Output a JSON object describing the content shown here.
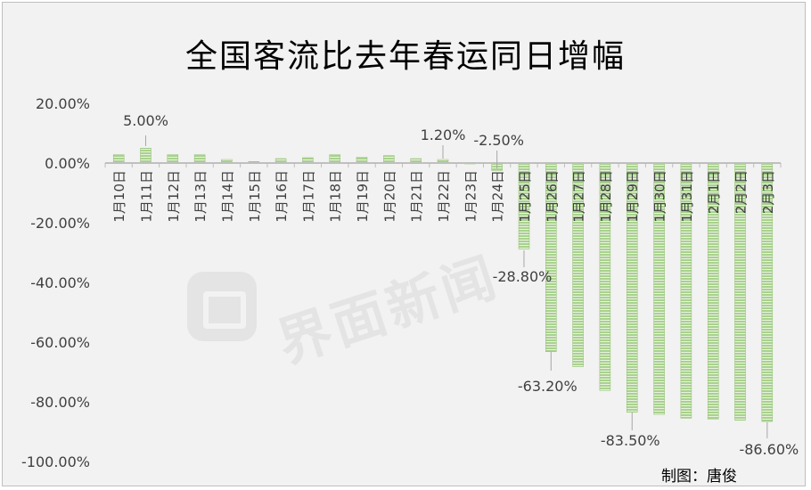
{
  "title": "全国客流比去年春运同日增幅",
  "credit": "制图：唐俊",
  "watermark": "界面新闻",
  "colors": {
    "bar": "#a9d18e",
    "bar_stripe": "#8fbf6e",
    "axis": "#bfbfbf",
    "text": "#404040"
  },
  "chart_data": {
    "type": "bar",
    "title": "全国客流比去年春运同日增幅",
    "xlabel": "",
    "ylabel": "",
    "ylim": [
      -100,
      20
    ],
    "yticks": [
      20,
      0,
      -20,
      -40,
      -60,
      -80,
      -100
    ],
    "ytick_labels": [
      "20.00%",
      "0.00%",
      "-20.00%",
      "-40.00%",
      "-60.00%",
      "-80.00%",
      "-100.00%"
    ],
    "grid": false,
    "legend": "none",
    "categories": [
      "1月10日",
      "1月11日",
      "1月12日",
      "1月13日",
      "1月14日",
      "1月15日",
      "1月16日",
      "1月17日",
      "1月18日",
      "1月19日",
      "1月20日",
      "1月21日",
      "1月22日",
      "1月23日",
      "1月24日",
      "1月25日",
      "1月26日",
      "1月27日",
      "1月28日",
      "1月29日",
      "1月30日",
      "1月31日",
      "2月1日",
      "2月2日",
      "2月3日"
    ],
    "values": [
      2.8,
      5.0,
      2.8,
      2.8,
      1.2,
      0.5,
      1.5,
      1.8,
      2.8,
      2.0,
      2.5,
      1.5,
      1.2,
      -0.3,
      -2.5,
      -28.8,
      -63.2,
      -68.2,
      -76.2,
      -83.5,
      -84.2,
      -85.5,
      -85.8,
      -86.2,
      -86.6
    ],
    "data_labels": [
      {
        "index": 1,
        "text": "5.00%"
      },
      {
        "index": 12,
        "text": "1.20%"
      },
      {
        "index": 14,
        "text": "-2.50%"
      },
      {
        "index": 15,
        "text": "-28.80%"
      },
      {
        "index": 16,
        "text": "-63.20%"
      },
      {
        "index": 19,
        "text": "-83.50%"
      },
      {
        "index": 24,
        "text": "-86.60%"
      }
    ]
  }
}
